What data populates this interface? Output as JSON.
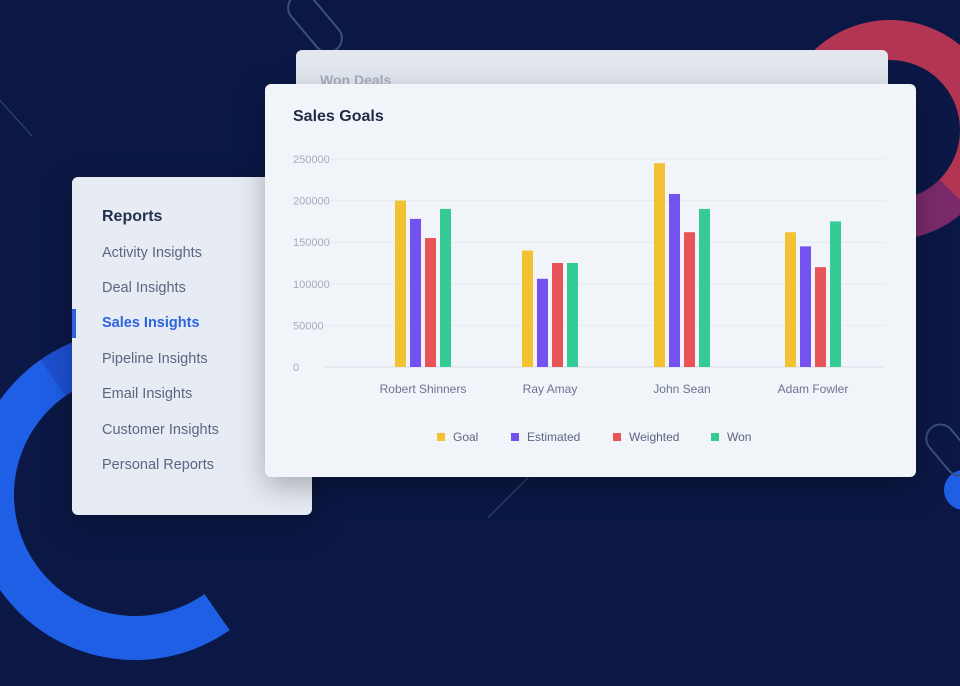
{
  "back_card": {
    "title": "Won Deals"
  },
  "sidebar": {
    "heading": "Reports",
    "items": [
      {
        "label": "Activity Insights",
        "active": false
      },
      {
        "label": "Deal Insights",
        "active": false
      },
      {
        "label": "Sales Insights",
        "active": true
      },
      {
        "label": "Pipeline Insights",
        "active": false
      },
      {
        "label": "Email Insights",
        "active": false
      },
      {
        "label": "Customer Insights",
        "active": false
      },
      {
        "label": "Personal Reports",
        "active": false
      }
    ]
  },
  "colors": {
    "background": "#0b1845",
    "accent": "#2d63e0",
    "goal": "#f3c233",
    "estimated": "#7352f0",
    "weighted": "#e85357",
    "won": "#34cb95"
  },
  "chart_data": {
    "type": "bar",
    "title": "Sales Goals",
    "categories": [
      "Robert Shinners",
      "Ray Amay",
      "John Sean",
      "Adam Fowler"
    ],
    "series": [
      {
        "name": "Goal",
        "color": "#f3c233",
        "values": [
          200000,
          140000,
          245000,
          162000
        ]
      },
      {
        "name": "Estimated",
        "color": "#7352f0",
        "values": [
          178000,
          106000,
          208000,
          145000
        ]
      },
      {
        "name": "Weighted",
        "color": "#e85357",
        "values": [
          155000,
          125000,
          162000,
          120000
        ]
      },
      {
        "name": "Won",
        "color": "#34cb95",
        "values": [
          190000,
          125000,
          190000,
          175000
        ]
      }
    ],
    "yticks": [
      "250000",
      "200000",
      "150000",
      "100000",
      "50000",
      "0"
    ],
    "ylim": [
      0,
      260000
    ],
    "grid": true,
    "legend": "bottom"
  }
}
